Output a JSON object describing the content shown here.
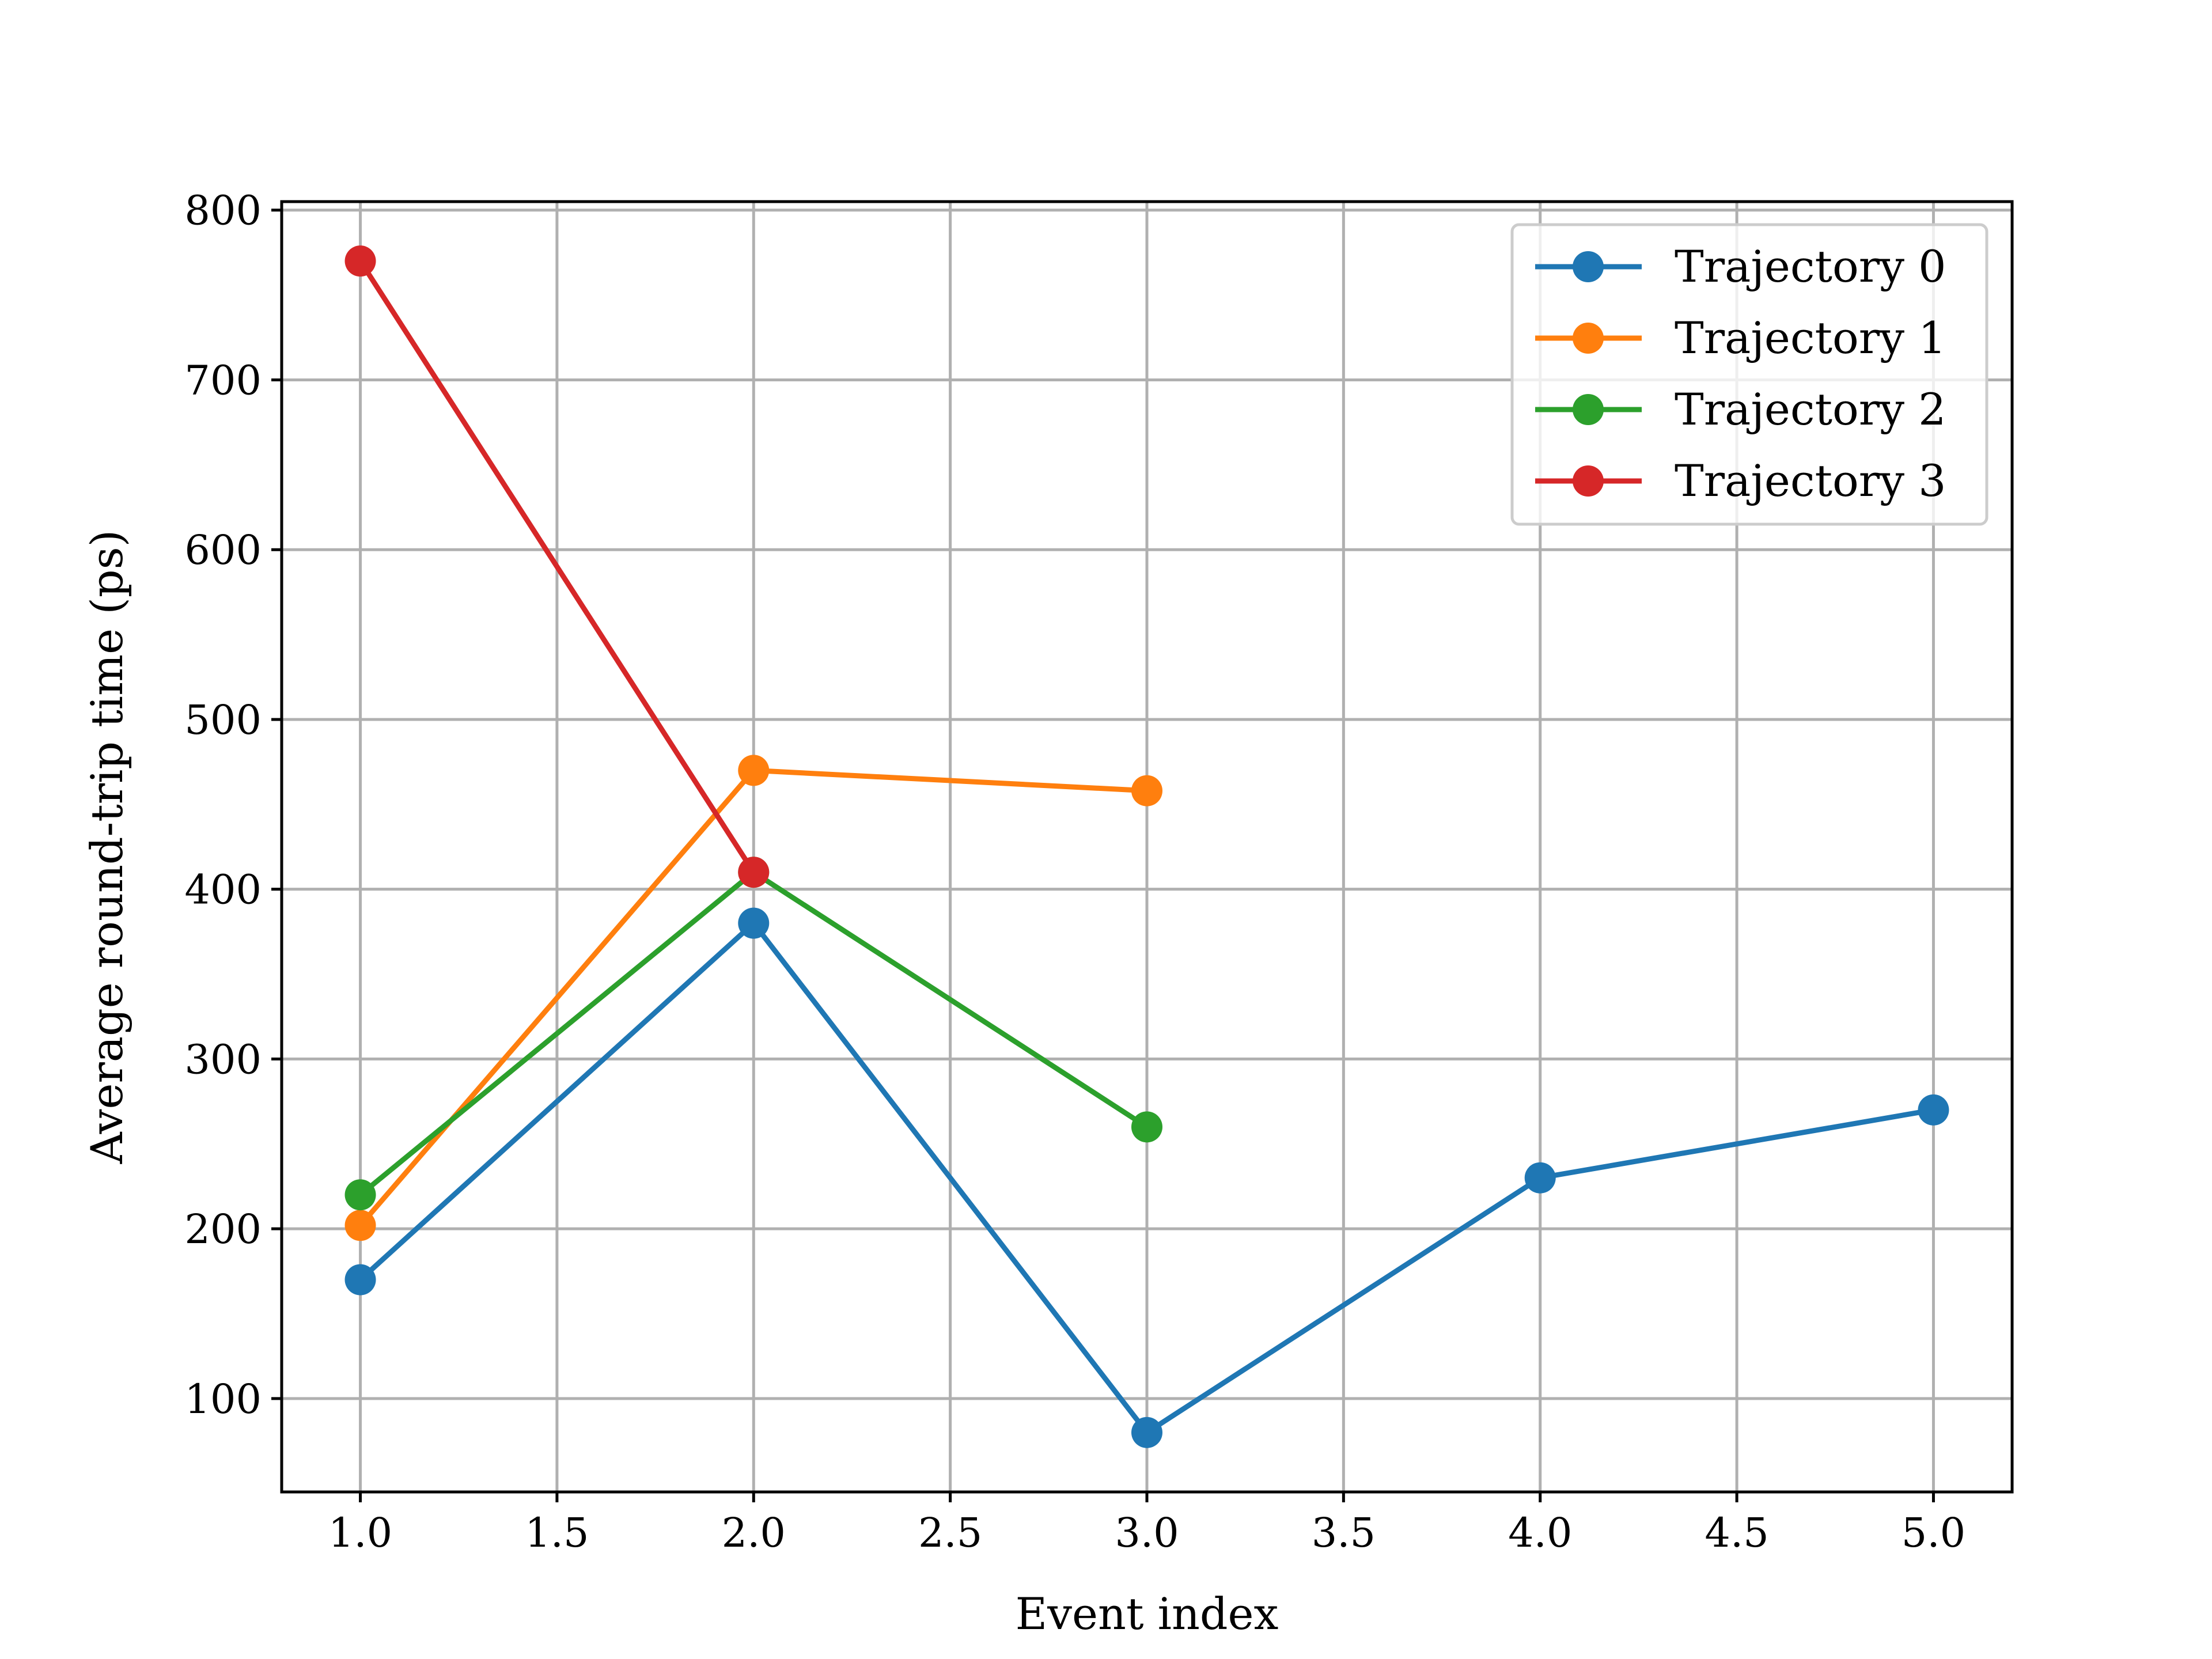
{
  "chart_data": {
    "type": "line",
    "title": "",
    "xlabel": "Event index",
    "ylabel": "Average round-trip time (ps)",
    "xlim": [
      0.8,
      5.2
    ],
    "ylim": [
      45,
      805
    ],
    "xticks": [
      1.0,
      1.5,
      2.0,
      2.5,
      3.0,
      3.5,
      4.0,
      4.5,
      5.0
    ],
    "xtick_labels": [
      "1.0",
      "1.5",
      "2.0",
      "2.5",
      "3.0",
      "3.5",
      "4.0",
      "4.5",
      "5.0"
    ],
    "yticks": [
      100,
      200,
      300,
      400,
      500,
      600,
      700,
      800
    ],
    "ytick_labels": [
      "100",
      "200",
      "300",
      "400",
      "500",
      "600",
      "700",
      "800"
    ],
    "grid": true,
    "legend_position": "top-right",
    "series": [
      {
        "name": "Trajectory 0",
        "color": "#1f77b4",
        "x": [
          1,
          2,
          3,
          4,
          5
        ],
        "y": [
          170,
          380,
          80,
          230,
          270
        ]
      },
      {
        "name": "Trajectory 1",
        "color": "#ff7f0e",
        "x": [
          1,
          2,
          3
        ],
        "y": [
          202,
          470,
          458
        ]
      },
      {
        "name": "Trajectory 2",
        "color": "#2ca02c",
        "x": [
          1,
          2,
          3
        ],
        "y": [
          220,
          410,
          260
        ]
      },
      {
        "name": "Trajectory 3",
        "color": "#d62728",
        "x": [
          1,
          2
        ],
        "y": [
          770,
          410
        ]
      }
    ]
  }
}
